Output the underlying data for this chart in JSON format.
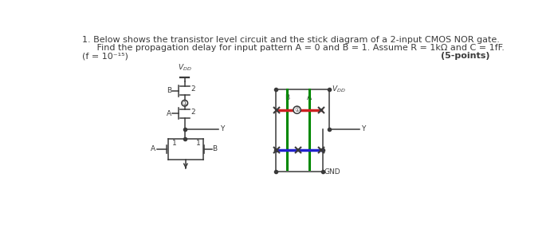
{
  "bg_color": "#ffffff",
  "text_color": "#1a1a1a",
  "circuit_color": "#3a3a3a",
  "red_color": "#cc2222",
  "green_color": "#008800",
  "blue_color": "#2222cc",
  "title1": "1. Below shows the transistor level circuit and the stick diagram of a 2-input CMOS NOR gate.",
  "title2": "   Find the propagation delay for input pattern A = 0 and B = 1. Assume R = 1kΩ and C = 1fF.",
  "title3": "(f = 10⁻¹⁵)",
  "title3r": "(5-points)"
}
